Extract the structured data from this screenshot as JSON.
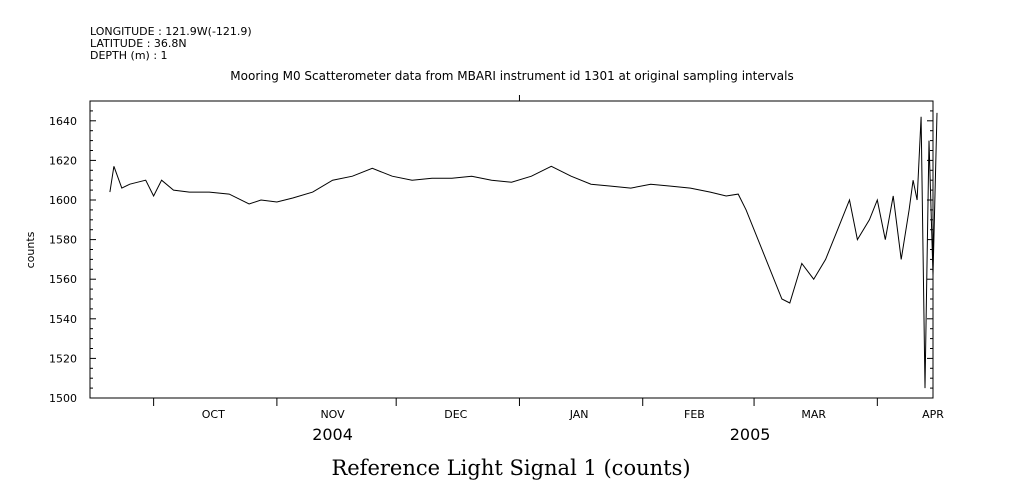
{
  "chart_data": {
    "type": "line",
    "header": {
      "longitude": "LONGITUDE : 121.9W(-121.9)",
      "latitude": "LATITUDE : 36.8N",
      "depth": "DEPTH (m) : 1"
    },
    "title": "Mooring M0 Scatterometer data from MBARI instrument id 1301 at original sampling intervals",
    "xlabel": "Reference Light Signal 1 (counts)",
    "ylabel": "counts",
    "ylim": [
      1500,
      1650
    ],
    "yticks": [
      1500,
      1520,
      1540,
      1560,
      1580,
      1600,
      1620,
      1640
    ],
    "xlim": [
      "2004-09-15",
      "2005-04-15"
    ],
    "month_labels": [
      {
        "label": "OCT",
        "date": "2004-10-16"
      },
      {
        "label": "NOV",
        "date": "2004-11-15"
      },
      {
        "label": "DEC",
        "date": "2004-12-16"
      },
      {
        "label": "JAN",
        "date": "2005-01-16"
      },
      {
        "label": "FEB",
        "date": "2005-02-14"
      },
      {
        "label": "MAR",
        "date": "2005-03-16"
      },
      {
        "label": "APR",
        "date": "2005-04-15"
      }
    ],
    "month_boundaries": [
      "2004-10-01",
      "2004-11-01",
      "2004-12-01",
      "2005-01-01",
      "2005-02-01",
      "2005-03-01",
      "2005-04-01"
    ],
    "year_labels": [
      {
        "label": "2004",
        "date": "2004-11-15"
      },
      {
        "label": "2005",
        "date": "2005-02-28"
      }
    ],
    "grid": false,
    "series": [
      {
        "x": [
          "2004-09-20",
          "2004-09-21",
          "2004-09-23",
          "2004-09-25",
          "2004-09-27",
          "2004-09-29",
          "2004-10-01",
          "2004-10-03",
          "2004-10-06",
          "2004-10-10",
          "2004-10-15",
          "2004-10-20",
          "2004-10-25",
          "2004-10-28",
          "2004-11-01",
          "2004-11-05",
          "2004-11-10",
          "2004-11-15",
          "2004-11-20",
          "2004-11-25",
          "2004-11-30",
          "2004-12-05",
          "2004-12-10",
          "2004-12-15",
          "2004-12-20",
          "2004-12-25",
          "2004-12-30",
          "2005-01-04",
          "2005-01-09",
          "2005-01-14",
          "2005-01-19",
          "2005-01-24",
          "2005-01-29",
          "2005-02-03",
          "2005-02-08",
          "2005-02-13",
          "2005-02-18",
          "2005-02-22",
          "2005-02-25",
          "2005-02-27",
          "2005-03-08",
          "2005-03-10",
          "2005-03-13",
          "2005-03-16",
          "2005-03-19",
          "2005-03-22",
          "2005-03-25",
          "2005-03-27",
          "2005-03-30",
          "2005-04-01",
          "2005-04-03",
          "2005-04-05",
          "2005-04-07",
          "2005-04-09",
          "2005-04-10",
          "2005-04-11",
          "2005-04-12",
          "2005-04-13",
          "2005-04-14",
          "2005-04-15",
          "2005-04-16"
        ],
        "y": [
          1604,
          1617,
          1606,
          1608,
          1609,
          1610,
          1602,
          1610,
          1605,
          1604,
          1604,
          1603,
          1598,
          1600,
          1599,
          1601,
          1604,
          1610,
          1612,
          1616,
          1612,
          1610,
          1611,
          1611,
          1612,
          1610,
          1609,
          1612,
          1617,
          1612,
          1608,
          1607,
          1606,
          1608,
          1607,
          1606,
          1604,
          1602,
          1603,
          1595,
          1550,
          1548,
          1568,
          1560,
          1570,
          1585,
          1600,
          1580,
          1590,
          1600,
          1580,
          1602,
          1570,
          1595,
          1610,
          1600,
          1642,
          1505,
          1630,
          1562,
          1644
        ]
      }
    ]
  }
}
